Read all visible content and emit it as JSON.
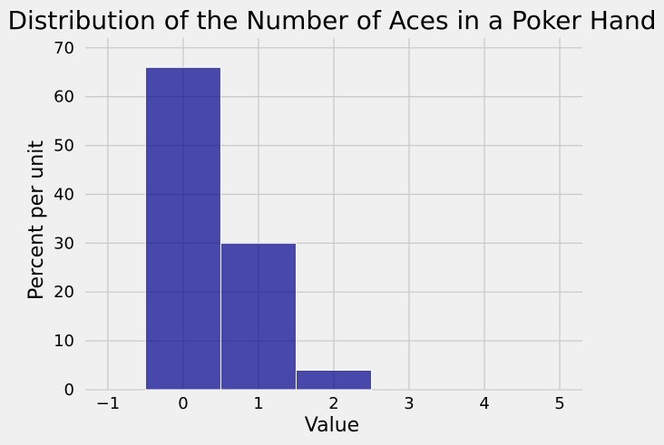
{
  "chart_data": {
    "type": "bar",
    "title": "Distribution of the Number of Aces in a Poker Hand",
    "xlabel": "Value",
    "ylabel": "Percent per unit",
    "bins": [
      {
        "start": -0.5,
        "end": 0.5,
        "value": 66
      },
      {
        "start": 0.5,
        "end": 1.5,
        "value": 30
      },
      {
        "start": 1.5,
        "end": 2.5,
        "value": 4
      }
    ],
    "xlim": [
      -1.3,
      5.3
    ],
    "ylim": [
      0,
      72
    ],
    "xticks": [
      -1,
      0,
      1,
      2,
      3,
      4,
      5
    ],
    "xtick_labels": [
      "−1",
      "0",
      "1",
      "2",
      "3",
      "4",
      "5"
    ],
    "yticks": [
      0,
      10,
      20,
      30,
      40,
      50,
      60,
      70
    ],
    "ytick_labels": [
      "0",
      "10",
      "20",
      "30",
      "40",
      "50",
      "60",
      "70"
    ],
    "grid": true,
    "bar_color": "#00008b",
    "bar_opacity": 0.7,
    "background_color": "#f0f0f0",
    "grid_color": "#cbcbcb"
  }
}
